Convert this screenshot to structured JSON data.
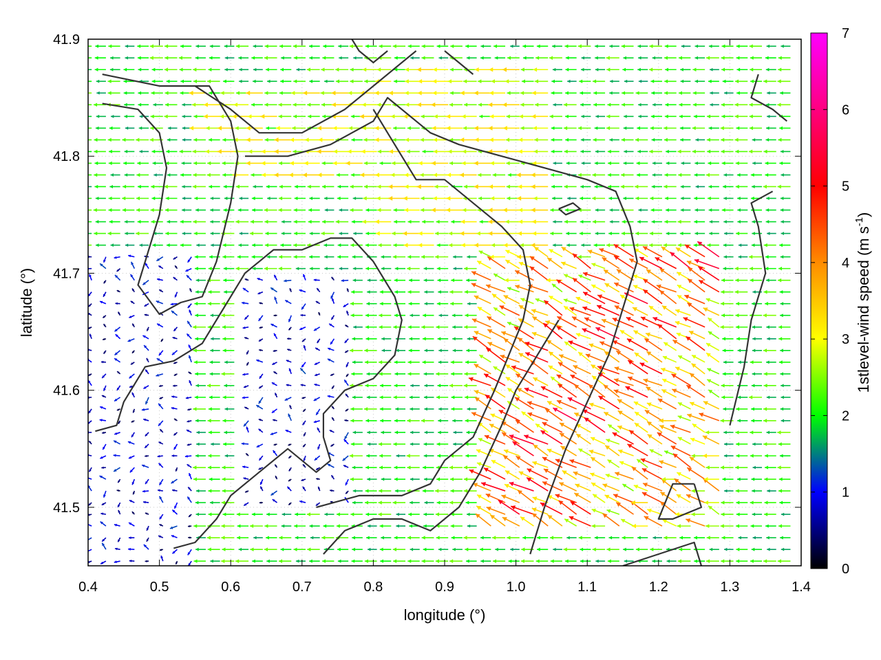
{
  "chart_data": {
    "type": "vector-field",
    "xlabel": "longitude (°)",
    "ylabel": "latitude (°)",
    "xlim": [
      0.4,
      1.4
    ],
    "ylim": [
      41.45,
      41.9
    ],
    "xticks": [
      "0.4",
      "0.5",
      "0.6",
      "0.7",
      "0.8",
      "0.9",
      "1.0",
      "1.1",
      "1.2",
      "1.3",
      "1.4"
    ],
    "yticks": [
      "41.5",
      "41.6",
      "41.7",
      "41.8",
      "41.9"
    ],
    "grid": true,
    "colorbar": {
      "label_main": "1stlevel-wind speed (m s",
      "label_sup": "-1",
      "label_end": ")",
      "range": [
        0,
        7
      ],
      "ticks": [
        "0",
        "1",
        "2",
        "3",
        "4",
        "5",
        "6",
        "7"
      ],
      "colors": [
        "#000000",
        "#0000ff",
        "#00ff00",
        "#ffff00",
        "#ff8c00",
        "#ff0000",
        "#ff00ff"
      ]
    },
    "wind_field": {
      "grid_step_lon": 0.02,
      "grid_step_lat": 0.01,
      "prevailing_direction": "east-to-west",
      "high_speed_zone": {
        "lon": [
          0.95,
          1.3
        ],
        "lat": [
          41.48,
          41.72
        ],
        "speed": [
          3,
          6
        ]
      },
      "moderate_zones": [
        {
          "lon": [
            0.8,
            1.05
          ],
          "lat": [
            41.72,
            41.88
          ],
          "speed": [
            2,
            3.5
          ]
        },
        {
          "lon": [
            0.55,
            0.8
          ],
          "lat": [
            41.78,
            41.86
          ],
          "speed": [
            2,
            3
          ]
        }
      ],
      "calm_zones": [
        {
          "lon": [
            0.4,
            0.55
          ],
          "lat": [
            41.45,
            41.72
          ],
          "speed": [
            0.3,
            1.2
          ]
        },
        {
          "lon": [
            0.62,
            0.78
          ],
          "lat": [
            41.5,
            41.7
          ],
          "speed": [
            0.3,
            1.2
          ]
        }
      ]
    },
    "coastlines": [
      [
        [
          0.42,
          41.87
        ],
        [
          0.5,
          41.86
        ],
        [
          0.55,
          41.86
        ],
        [
          0.6,
          41.84
        ],
        [
          0.64,
          41.82
        ],
        [
          0.7,
          41.82
        ],
        [
          0.76,
          41.84
        ],
        [
          0.8,
          41.86
        ],
        [
          0.84,
          41.88
        ],
        [
          0.86,
          41.89
        ]
      ],
      [
        [
          0.42,
          41.845
        ],
        [
          0.47,
          41.84
        ],
        [
          0.5,
          41.82
        ],
        [
          0.51,
          41.79
        ],
        [
          0.5,
          41.75
        ],
        [
          0.48,
          41.71
        ],
        [
          0.47,
          41.69
        ],
        [
          0.5,
          41.665
        ],
        [
          0.53,
          41.675
        ],
        [
          0.56,
          41.68
        ],
        [
          0.58,
          41.71
        ],
        [
          0.6,
          41.76
        ],
        [
          0.61,
          41.8
        ],
        [
          0.6,
          41.83
        ],
        [
          0.57,
          41.86
        ],
        [
          0.55,
          41.86
        ]
      ],
      [
        [
          0.41,
          41.565
        ],
        [
          0.44,
          41.57
        ],
        [
          0.45,
          41.59
        ],
        [
          0.48,
          41.62
        ],
        [
          0.52,
          41.625
        ],
        [
          0.56,
          41.64
        ],
        [
          0.58,
          41.66
        ],
        [
          0.62,
          41.7
        ],
        [
          0.66,
          41.72
        ],
        [
          0.7,
          41.72
        ],
        [
          0.74,
          41.73
        ],
        [
          0.77,
          41.73
        ],
        [
          0.8,
          41.71
        ],
        [
          0.83,
          41.68
        ],
        [
          0.84,
          41.66
        ],
        [
          0.83,
          41.63
        ],
        [
          0.8,
          41.61
        ],
        [
          0.76,
          41.6
        ],
        [
          0.73,
          41.58
        ],
        [
          0.73,
          41.56
        ],
        [
          0.74,
          41.54
        ],
        [
          0.72,
          41.53
        ],
        [
          0.68,
          41.55
        ],
        [
          0.64,
          41.53
        ],
        [
          0.6,
          41.51
        ],
        [
          0.58,
          41.49
        ],
        [
          0.55,
          41.47
        ],
        [
          0.52,
          41.465
        ]
      ],
      [
        [
          0.62,
          41.8
        ],
        [
          0.68,
          41.8
        ],
        [
          0.74,
          41.81
        ],
        [
          0.8,
          41.83
        ],
        [
          0.82,
          41.85
        ],
        [
          0.84,
          41.84
        ],
        [
          0.88,
          41.82
        ],
        [
          0.92,
          41.81
        ],
        [
          0.98,
          41.8
        ],
        [
          1.04,
          41.79
        ],
        [
          1.1,
          41.78
        ],
        [
          1.14,
          41.77
        ],
        [
          1.16,
          41.74
        ],
        [
          1.17,
          41.71
        ],
        [
          1.15,
          41.67
        ],
        [
          1.13,
          41.63
        ],
        [
          1.1,
          41.59
        ],
        [
          1.07,
          41.55
        ],
        [
          1.04,
          41.5
        ],
        [
          1.02,
          41.46
        ]
      ],
      [
        [
          0.72,
          41.5
        ],
        [
          0.78,
          41.51
        ],
        [
          0.84,
          41.51
        ],
        [
          0.88,
          41.52
        ],
        [
          0.9,
          41.54
        ],
        [
          0.94,
          41.56
        ],
        [
          0.97,
          41.6
        ],
        [
          0.99,
          41.63
        ],
        [
          1.01,
          41.66
        ],
        [
          1.02,
          41.69
        ],
        [
          1.01,
          41.72
        ],
        [
          0.98,
          41.74
        ],
        [
          0.94,
          41.76
        ],
        [
          0.9,
          41.78
        ],
        [
          0.86,
          41.78
        ],
        [
          0.84,
          41.8
        ],
        [
          0.82,
          41.82
        ],
        [
          0.8,
          41.84
        ]
      ],
      [
        [
          0.73,
          41.46
        ],
        [
          0.76,
          41.48
        ],
        [
          0.8,
          41.49
        ],
        [
          0.84,
          41.49
        ],
        [
          0.88,
          41.48
        ],
        [
          0.92,
          41.5
        ],
        [
          0.95,
          41.53
        ],
        [
          0.98,
          41.57
        ],
        [
          1.0,
          41.6
        ],
        [
          1.03,
          41.63
        ],
        [
          1.06,
          41.66
        ]
      ],
      [
        [
          1.06,
          41.755
        ],
        [
          1.08,
          41.76
        ],
        [
          1.09,
          41.755
        ],
        [
          1.07,
          41.75
        ],
        [
          1.06,
          41.755
        ]
      ],
      [
        [
          1.25,
          41.52
        ],
        [
          1.26,
          41.5
        ],
        [
          1.22,
          41.49
        ],
        [
          1.2,
          41.49
        ],
        [
          1.22,
          41.52
        ],
        [
          1.25,
          41.52
        ]
      ],
      [
        [
          1.15,
          41.45
        ],
        [
          1.2,
          41.46
        ],
        [
          1.25,
          41.47
        ],
        [
          1.26,
          41.45
        ]
      ],
      [
        [
          1.3,
          41.57
        ],
        [
          1.32,
          41.62
        ],
        [
          1.33,
          41.66
        ],
        [
          1.35,
          41.7
        ],
        [
          1.34,
          41.74
        ],
        [
          1.33,
          41.76
        ],
        [
          1.36,
          41.77
        ]
      ],
      [
        [
          1.34,
          41.87
        ],
        [
          1.33,
          41.85
        ],
        [
          1.36,
          41.84
        ],
        [
          1.38,
          41.83
        ]
      ],
      [
        [
          0.9,
          41.89
        ],
        [
          0.92,
          41.88
        ],
        [
          0.94,
          41.87
        ]
      ],
      [
        [
          0.77,
          41.9
        ],
        [
          0.78,
          41.89
        ],
        [
          0.8,
          41.88
        ],
        [
          0.82,
          41.89
        ]
      ]
    ]
  }
}
